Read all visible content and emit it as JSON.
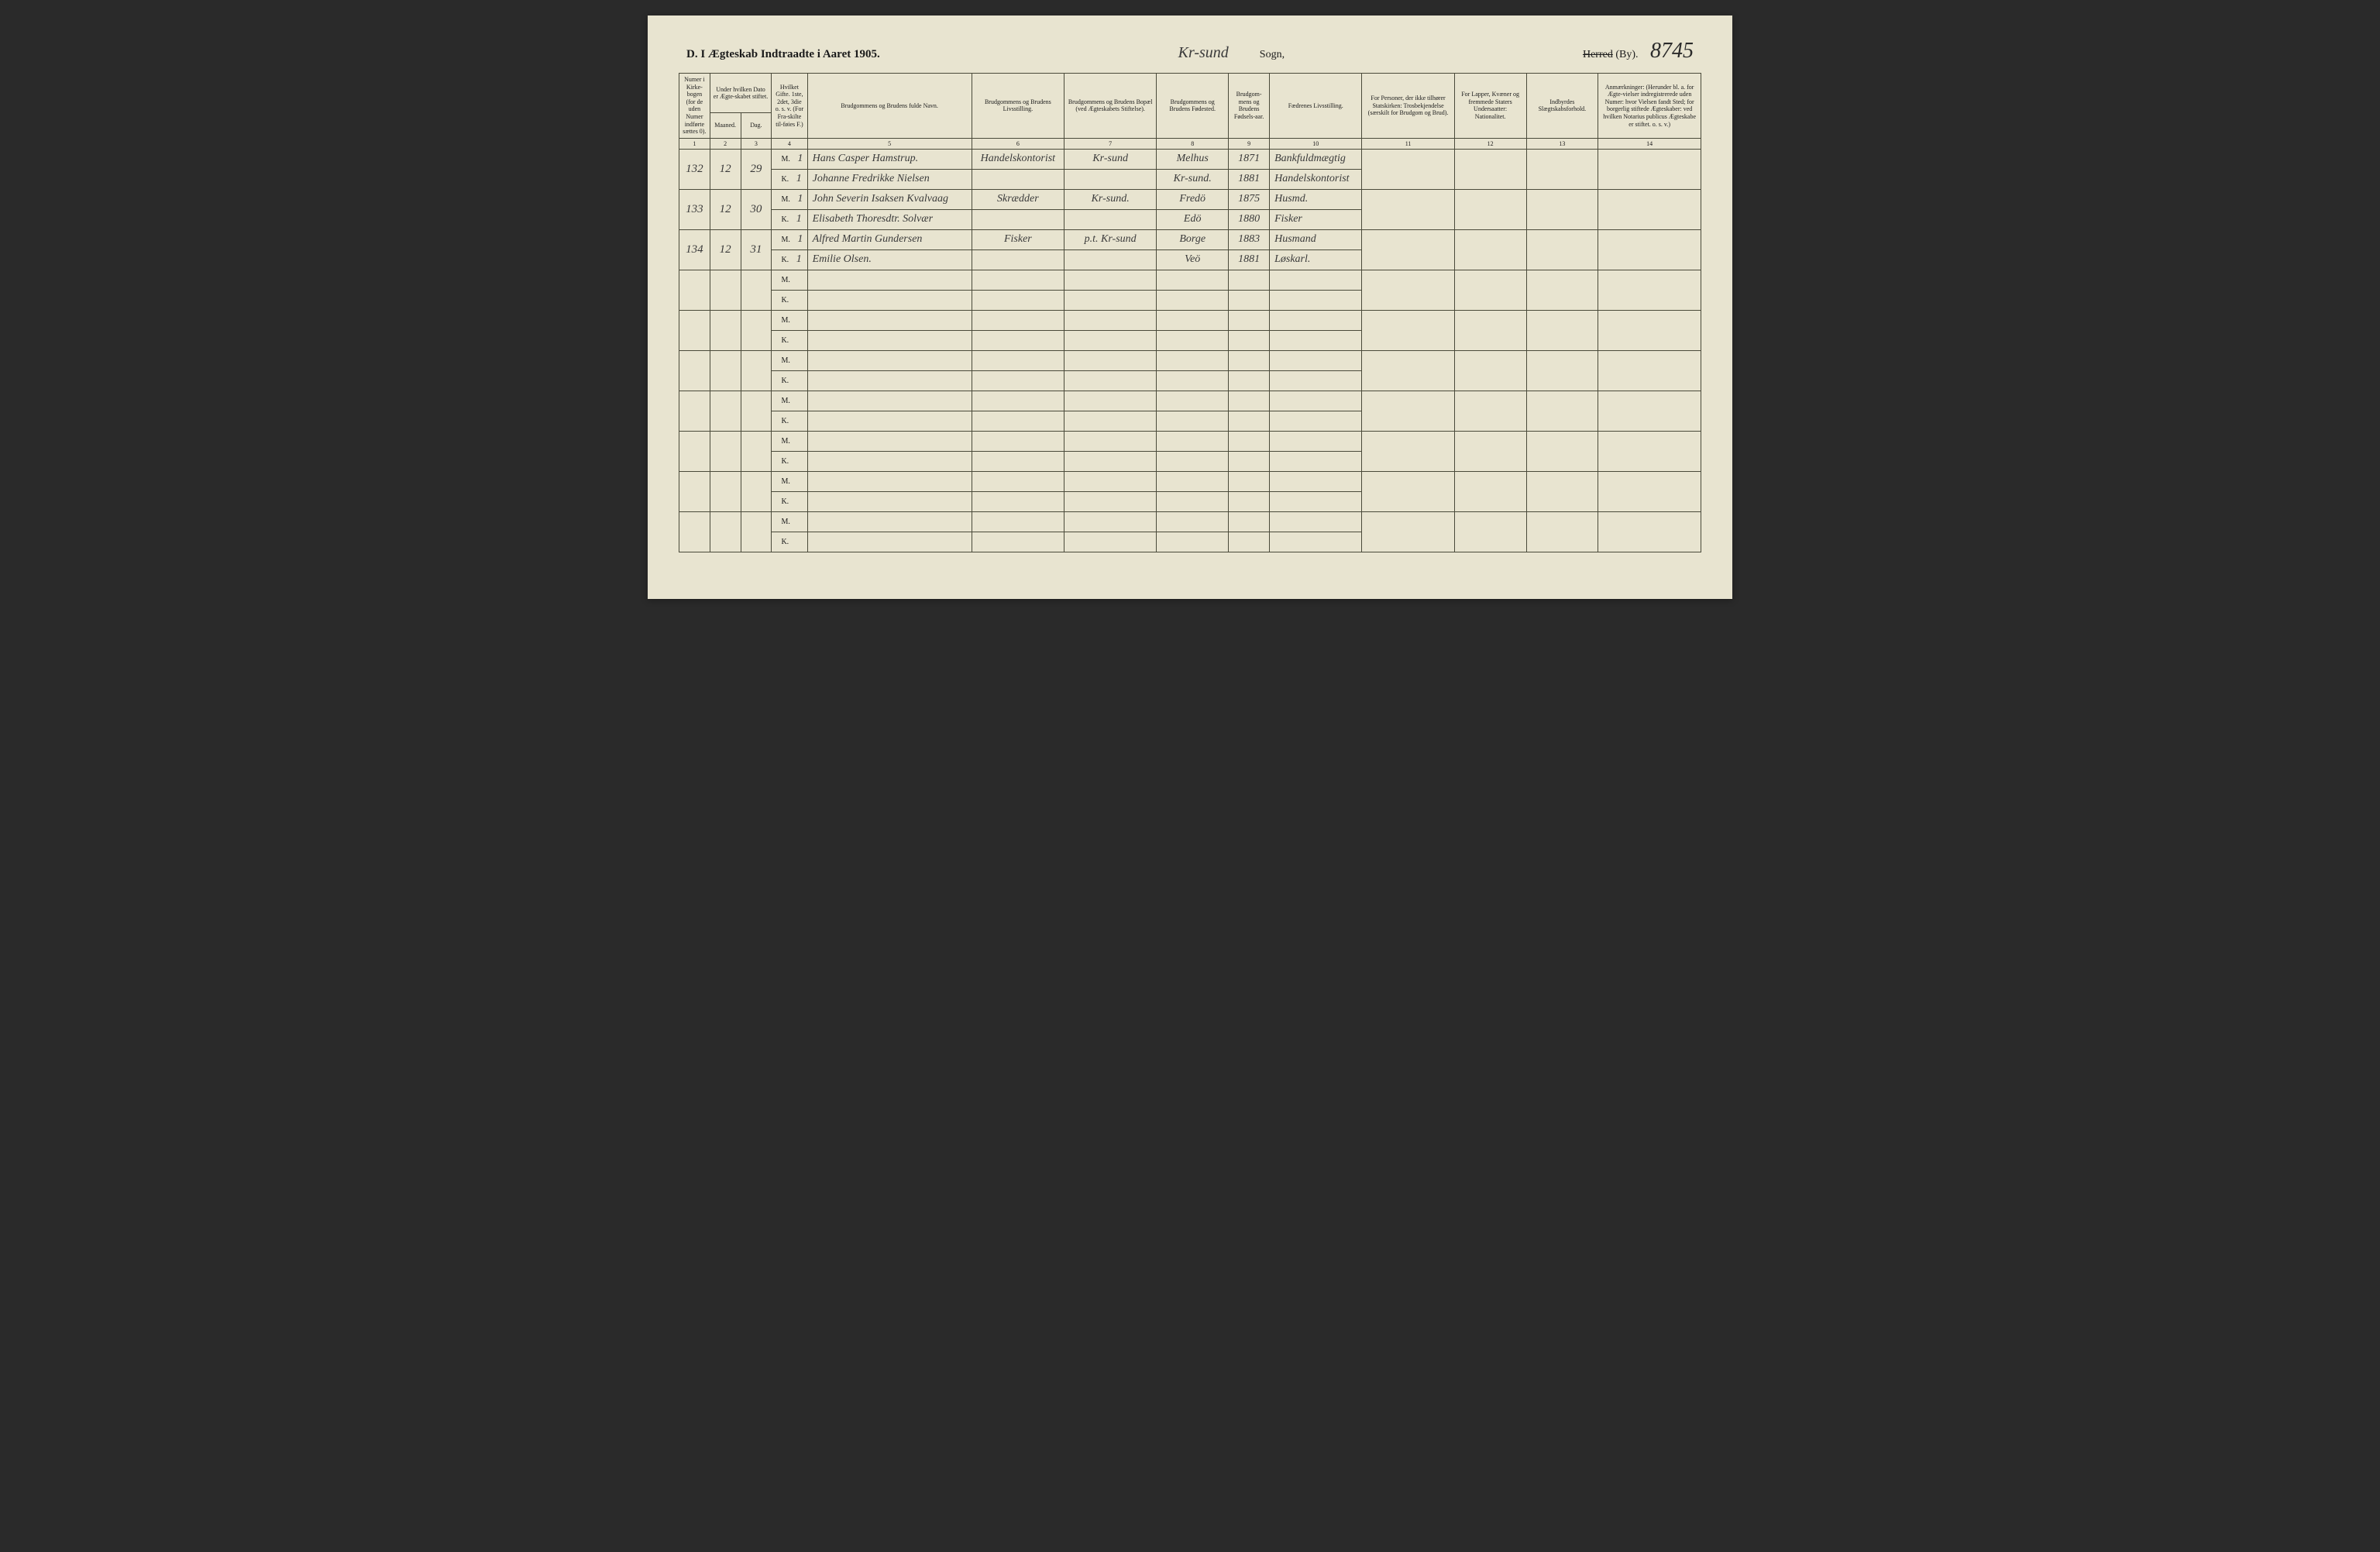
{
  "header": {
    "title_prefix": "D.  I Ægteskab Indtraadte i Aaret 190",
    "year_suffix": "5.",
    "sogn_script": "Kr-sund",
    "sogn_label": "Sogn,",
    "herred_strike": "Herred",
    "herred_rest": " (By).",
    "page_number": "8745"
  },
  "columns": {
    "h1": "Numer i Kirke-bogen (for de uden Numer indførte sættes 0).",
    "h2": "Under hvilken Dato er Ægte-skabet stiftet.",
    "h2a": "Maaned.",
    "h2b": "Dag.",
    "h4": "Hvilket Gifte. 1ste, 2det, 3die o. s. v. (For Fra-skilte til-føies F.)",
    "h5": "Brudgommens og Brudens fulde Navn.",
    "h6": "Brudgommens og Brudens Livsstilling.",
    "h7": "Brudgommens og Brudens Bopæl (ved Ægteskabets Stiftelse).",
    "h8": "Brudgommens og Brudens Fødested.",
    "h9": "Brudgom-mens og Brudens Fødsels-aar.",
    "h10": "Fædrenes Livsstilling.",
    "h11": "For Personer, der ikke tilhører Statskirken: Trosbekjendelse (særskilt for Brudgom og Brud).",
    "h12": "For Lapper, Kvæner og fremmede Staters Undersaatter: Nationalitet.",
    "h13": "Indbyrdes Slægtskabsforhold.",
    "h14": "Anmærkninger: (Herunder bl. a. for Ægte-vielser indregistrerede uden Numer: hvor Vielsen fandt Sted; for borgerlig stiftede Ægteskaber: ved hvilken Notarius publicus Ægteskabe er stiftet. o. s. v.)",
    "n1": "1",
    "n2": "2",
    "n3": "3",
    "n4": "4",
    "n5": "5",
    "n6": "6",
    "n7": "7",
    "n8": "8",
    "n9": "9",
    "n10": "10",
    "n11": "11",
    "n12": "12",
    "n13": "13",
    "n14": "14"
  },
  "rows": [
    {
      "num": "132",
      "maaned": "12",
      "dag": "29",
      "m": {
        "gifte": "1",
        "navn": "Hans Casper Hamstrup.",
        "stilling": "Handelskontorist",
        "bopael": "Kr-sund",
        "fodested": "Melhus",
        "aar": "1871",
        "faedre": "Bankfuldmægtig"
      },
      "k": {
        "gifte": "1",
        "navn": "Johanne Fredrikke Nielsen",
        "stilling": "",
        "bopael": "",
        "fodested": "Kr-sund.",
        "aar": "1881",
        "faedre": "Handelskontorist"
      }
    },
    {
      "num": "133",
      "maaned": "12",
      "dag": "30",
      "m": {
        "gifte": "1",
        "navn": "John Severin Isaksen Kvalvaag",
        "stilling": "Skrædder",
        "bopael": "Kr-sund.",
        "fodested": "Fredö",
        "aar": "1875",
        "faedre": "Husmd."
      },
      "k": {
        "gifte": "1",
        "navn": "Elisabeth Thoresdtr. Solvær",
        "stilling": "",
        "bopael": "",
        "fodested": "Edö",
        "aar": "1880",
        "faedre": "Fisker"
      }
    },
    {
      "num": "134",
      "maaned": "12",
      "dag": "31",
      "m": {
        "gifte": "1",
        "navn": "Alfred Martin Gundersen",
        "stilling": "Fisker",
        "bopael": "p.t. Kr-sund",
        "fodested": "Borge",
        "aar": "1883",
        "faedre": "Husmand"
      },
      "k": {
        "gifte": "1",
        "navn": "Emilie Olsen.",
        "stilling": "",
        "bopael": "",
        "fodested": "Veö",
        "aar": "1881",
        "faedre": "Løskarl."
      }
    }
  ],
  "mk": {
    "m": "M.",
    "k": "K."
  },
  "empty_pairs": 7
}
